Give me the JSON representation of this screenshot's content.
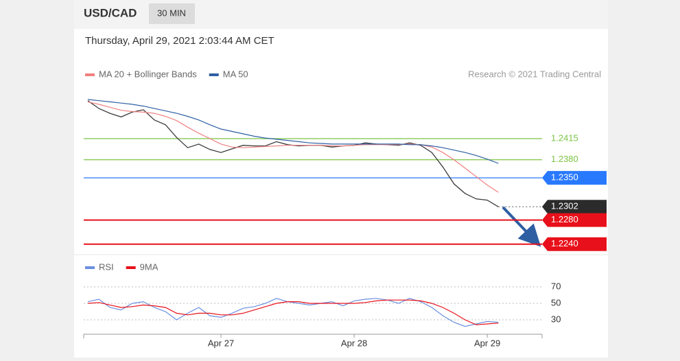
{
  "header": {
    "symbol": "USD/CAD",
    "interval": "30 MIN",
    "timestamp": "Thursday, April 29, 2021 2:03:44 AM CET"
  },
  "chart_data": [
    {
      "type": "line",
      "credit": "Research © 2021 Trading Central",
      "categories": [
        null,
        null,
        null,
        null,
        null,
        null,
        null,
        null,
        null,
        null,
        null,
        null,
        null,
        null,
        null,
        null,
        null,
        null,
        null,
        null,
        null,
        null,
        null,
        null,
        null,
        null,
        null,
        null,
        null,
        null,
        null,
        null,
        null,
        null,
        null,
        null,
        null,
        null
      ],
      "values": [
        1.2478,
        1.2465,
        1.2457,
        1.2451,
        1.2459,
        1.2463,
        1.2446,
        1.2438,
        1.2417,
        1.24,
        1.2406,
        1.2397,
        1.2392,
        1.2398,
        1.2404,
        1.2403,
        1.2403,
        1.241,
        1.2405,
        1.2403,
        1.2404,
        1.2404,
        1.2401,
        1.2403,
        1.2404,
        1.2408,
        1.2406,
        1.2405,
        1.2404,
        1.2408,
        1.2404,
        1.2392,
        1.2368,
        1.234,
        1.2324,
        1.2315,
        1.2313,
        1.2302
      ],
      "color": "#3a3a3a",
      "series": [
        {
          "name": "MA 20 + Bollinger Bands",
          "color": "#f08080",
          "values": [
            1.2476,
            1.2472,
            1.2467,
            1.2462,
            1.246,
            1.2459,
            1.2457,
            1.2452,
            1.2445,
            1.2434,
            1.2424,
            1.2415,
            1.2406,
            1.2401,
            1.24,
            1.2401,
            1.2402,
            1.2403,
            1.2404,
            1.2404,
            1.2404,
            1.2404,
            1.2403,
            1.2403,
            1.2404,
            1.2405,
            1.2405,
            1.2405,
            1.2405,
            1.2406,
            1.2405,
            1.2401,
            1.2392,
            1.238,
            1.2366,
            1.2352,
            1.2338,
            1.2326
          ]
        },
        {
          "name": "MA 50",
          "color": "#2e5fa3",
          "values": [
            1.248,
            1.2478,
            1.2476,
            1.2474,
            1.2472,
            1.2469,
            1.2465,
            1.2461,
            1.2457,
            1.2452,
            1.2446,
            1.2438,
            1.2431,
            1.2427,
            1.2423,
            1.2419,
            1.2416,
            1.2414,
            1.2412,
            1.241,
            1.2408,
            1.2407,
            1.2406,
            1.2406,
            1.2406,
            1.2406,
            1.2406,
            1.2406,
            1.2406,
            1.2405,
            1.2405,
            1.2403,
            1.24,
            1.2396,
            1.2392,
            1.2387,
            1.2381,
            1.2374
          ]
        }
      ],
      "ylim": [
        1.2226,
        1.2497
      ],
      "levels": [
        {
          "value": 1.2415,
          "label": "1.2415",
          "color": "#7cc444",
          "tag": false,
          "dotted": false
        },
        {
          "value": 1.238,
          "label": "1.2380",
          "color": "#7cc444",
          "tag": false,
          "dotted": false
        },
        {
          "value": 1.235,
          "label": "1.2350",
          "color": "#2979ff",
          "tag": true,
          "dotted": false
        },
        {
          "value": 1.2302,
          "label": "1.2302",
          "color": "#2b2b2b",
          "tag": true,
          "dotted": true
        },
        {
          "value": 1.228,
          "label": "1.2280",
          "color": "#e8101a",
          "tag": true,
          "dotted": false
        },
        {
          "value": 1.224,
          "label": "1.2240",
          "color": "#e8101a",
          "tag": true,
          "dotted": false
        }
      ]
    },
    {
      "type": "line",
      "categories": [
        null,
        null,
        null,
        null,
        null,
        null,
        null,
        null,
        null,
        null,
        null,
        null,
        "Apr 27",
        null,
        null,
        null,
        null,
        null,
        null,
        null,
        null,
        null,
        null,
        null,
        "Apr 28",
        null,
        null,
        null,
        null,
        null,
        null,
        null,
        null,
        null,
        null,
        null,
        "Apr 29",
        null
      ],
      "series": [
        {
          "name": "RSI",
          "color": "#6a8fe0",
          "values": [
            52,
            55,
            45,
            42,
            50,
            52,
            45,
            40,
            30,
            38,
            45,
            35,
            33,
            38,
            44,
            46,
            50,
            56,
            52,
            50,
            48,
            50,
            52,
            47,
            53,
            55,
            56,
            54,
            50,
            56,
            52,
            45,
            35,
            27,
            22,
            25,
            28,
            27
          ]
        },
        {
          "name": "9MA",
          "color": "#e8101a",
          "values": [
            50,
            51,
            48,
            45,
            46,
            48,
            47,
            45,
            38,
            36,
            38,
            38,
            36,
            36,
            38,
            42,
            46,
            50,
            52,
            52,
            50,
            50,
            50,
            50,
            50,
            51,
            53,
            54,
            54,
            54,
            53,
            50,
            45,
            38,
            30,
            24,
            25,
            26
          ]
        }
      ],
      "ylim": [
        12.5,
        80.8
      ],
      "yticks": [
        70,
        50,
        30
      ]
    }
  ]
}
